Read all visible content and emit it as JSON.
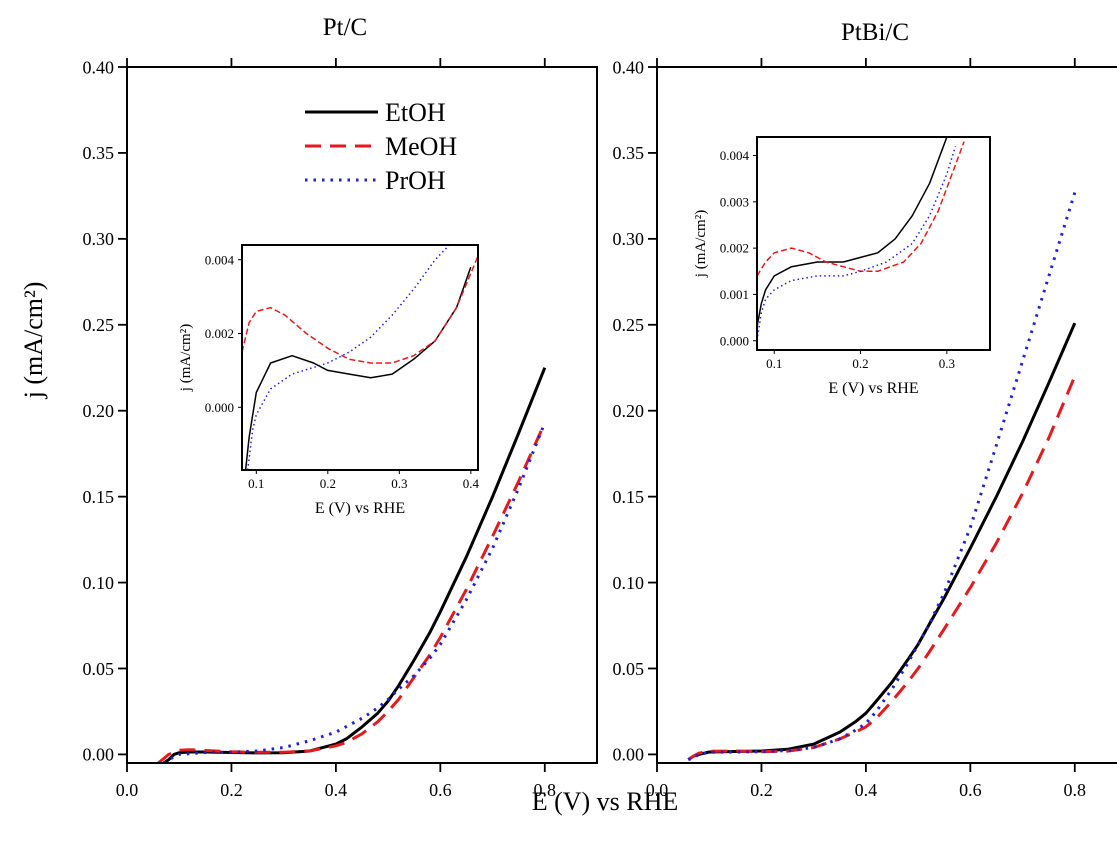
{
  "figure": {
    "xlabel": "E (V) vs RHE",
    "ylabel": "j (mA/cm²)"
  },
  "colors": {
    "EtOH": "#000000",
    "MeOH": "#e41a1c",
    "PrOH": "#1f1fd6"
  },
  "chart_data": [
    {
      "type": "line",
      "title": "Pt/C",
      "xlim": [
        0.0,
        0.9
      ],
      "ylim": [
        -0.005,
        0.4
      ],
      "xticks": [
        0.0,
        0.2,
        0.4,
        0.6,
        0.8
      ],
      "yticks": [
        0.0,
        0.05,
        0.1,
        0.15,
        0.2,
        0.25,
        0.3,
        0.35,
        0.4
      ],
      "legend": {
        "placement": "top-center",
        "entries": [
          "EtOH",
          "MeOH",
          "PrOH"
        ]
      },
      "series": [
        {
          "name": "EtOH",
          "style": "solid",
          "x": [
            0.07,
            0.08,
            0.09,
            0.1,
            0.12,
            0.15,
            0.2,
            0.25,
            0.3,
            0.35,
            0.4,
            0.42,
            0.45,
            0.48,
            0.5,
            0.52,
            0.55,
            0.58,
            0.6,
            0.65,
            0.7,
            0.75,
            0.8
          ],
          "y": [
            -0.005,
            -0.003,
            0.0,
            0.001,
            0.0014,
            0.0014,
            0.0011,
            0.0009,
            0.001,
            0.002,
            0.006,
            0.009,
            0.016,
            0.024,
            0.031,
            0.04,
            0.055,
            0.071,
            0.083,
            0.115,
            0.15,
            0.187,
            0.225
          ]
        },
        {
          "name": "MeOH",
          "style": "dashed",
          "x": [
            0.06,
            0.08,
            0.1,
            0.12,
            0.15,
            0.2,
            0.25,
            0.3,
            0.35,
            0.4,
            0.42,
            0.45,
            0.48,
            0.5,
            0.52,
            0.55,
            0.58,
            0.6,
            0.65,
            0.7,
            0.75,
            0.8
          ],
          "y": [
            -0.005,
            0.0,
            0.0024,
            0.0027,
            0.0023,
            0.0015,
            0.0012,
            0.0013,
            0.002,
            0.005,
            0.007,
            0.012,
            0.019,
            0.025,
            0.032,
            0.045,
            0.058,
            0.068,
            0.096,
            0.127,
            0.159,
            0.193
          ]
        },
        {
          "name": "PrOH",
          "style": "dotted",
          "x": [
            0.07,
            0.08,
            0.1,
            0.15,
            0.2,
            0.25,
            0.3,
            0.35,
            0.4,
            0.45,
            0.48,
            0.5,
            0.52,
            0.55,
            0.58,
            0.6,
            0.65,
            0.7,
            0.75,
            0.8
          ],
          "y": [
            -0.005,
            -0.003,
            0.0,
            0.0011,
            0.0013,
            0.002,
            0.004,
            0.008,
            0.013,
            0.021,
            0.027,
            0.032,
            0.038,
            0.046,
            0.056,
            0.064,
            0.09,
            0.12,
            0.155,
            0.193
          ]
        }
      ],
      "inset": {
        "xlabel": "E (V) vs RHE",
        "ylabel": "j (mA/cm²)",
        "xlim": [
          0.08,
          0.41
        ],
        "ylim": [
          -0.0017,
          0.0044
        ],
        "xticks": [
          0.1,
          0.2,
          0.3,
          0.4
        ],
        "yticks": [
          0.0,
          0.002,
          0.004
        ],
        "series": [
          {
            "name": "EtOH",
            "style": "solid",
            "x": [
              0.085,
              0.09,
              0.1,
              0.12,
              0.15,
              0.18,
              0.2,
              0.23,
              0.26,
              0.29,
              0.32,
              0.35,
              0.38,
              0.4
            ],
            "y": [
              -0.0017,
              -0.0008,
              0.0004,
              0.0012,
              0.0014,
              0.0012,
              0.001,
              0.0009,
              0.0008,
              0.0009,
              0.0013,
              0.0018,
              0.0027,
              0.0038
            ]
          },
          {
            "name": "MeOH",
            "style": "dashed",
            "x": [
              0.08,
              0.09,
              0.1,
              0.12,
              0.14,
              0.17,
              0.2,
              0.23,
              0.26,
              0.29,
              0.32,
              0.35,
              0.38,
              0.41
            ],
            "y": [
              0.0015,
              0.0023,
              0.0026,
              0.0027,
              0.0025,
              0.002,
              0.0016,
              0.0013,
              0.0012,
              0.0012,
              0.0014,
              0.0018,
              0.0027,
              0.0041
            ]
          },
          {
            "name": "PrOH",
            "style": "dotted",
            "x": [
              0.088,
              0.095,
              0.1,
              0.12,
              0.15,
              0.2,
              0.23,
              0.26,
              0.29,
              0.32,
              0.35,
              0.37
            ],
            "y": [
              -0.0017,
              -0.0006,
              -0.0002,
              0.0005,
              0.0009,
              0.0012,
              0.0015,
              0.0019,
              0.0025,
              0.0032,
              0.004,
              0.0044
            ]
          }
        ]
      }
    },
    {
      "type": "line",
      "title": "PtBi/C",
      "xlim": [
        0.0,
        0.9
      ],
      "ylim": [
        -0.005,
        0.4
      ],
      "xticks": [
        0.0,
        0.2,
        0.4,
        0.6,
        0.8
      ],
      "yticks": [
        0.0,
        0.05,
        0.1,
        0.15,
        0.2,
        0.25,
        0.3,
        0.35,
        0.4
      ],
      "series": [
        {
          "name": "EtOH",
          "style": "solid",
          "x": [
            0.06,
            0.07,
            0.08,
            0.1,
            0.15,
            0.2,
            0.25,
            0.3,
            0.35,
            0.38,
            0.4,
            0.42,
            0.45,
            0.48,
            0.5,
            0.52,
            0.55,
            0.6,
            0.65,
            0.7,
            0.75,
            0.8
          ],
          "y": [
            -0.003,
            -0.001,
            0.0,
            0.0014,
            0.0017,
            0.002,
            0.003,
            0.006,
            0.013,
            0.019,
            0.024,
            0.031,
            0.042,
            0.055,
            0.064,
            0.075,
            0.091,
            0.12,
            0.15,
            0.182,
            0.216,
            0.251
          ]
        },
        {
          "name": "MeOH",
          "style": "dashed",
          "x": [
            0.06,
            0.07,
            0.08,
            0.1,
            0.15,
            0.2,
            0.25,
            0.3,
            0.35,
            0.38,
            0.4,
            0.42,
            0.45,
            0.48,
            0.5,
            0.52,
            0.55,
            0.6,
            0.65,
            0.7,
            0.75,
            0.8
          ],
          "y": [
            -0.003,
            -0.001,
            0.0007,
            0.0018,
            0.002,
            0.0016,
            0.0019,
            0.004,
            0.009,
            0.013,
            0.016,
            0.021,
            0.031,
            0.042,
            0.05,
            0.059,
            0.073,
            0.097,
            0.123,
            0.152,
            0.184,
            0.22
          ]
        },
        {
          "name": "PrOH",
          "style": "dotted",
          "x": [
            0.06,
            0.07,
            0.08,
            0.1,
            0.15,
            0.2,
            0.25,
            0.3,
            0.35,
            0.38,
            0.4,
            0.42,
            0.45,
            0.48,
            0.5,
            0.52,
            0.55,
            0.6,
            0.65,
            0.7,
            0.75,
            0.8
          ],
          "y": [
            -0.003,
            -0.002,
            0.0,
            0.0012,
            0.0014,
            0.0016,
            0.0022,
            0.004,
            0.009,
            0.014,
            0.018,
            0.025,
            0.038,
            0.053,
            0.064,
            0.075,
            0.094,
            0.132,
            0.18,
            0.229,
            0.278,
            0.327
          ]
        }
      ],
      "inset": {
        "xlabel": "E (V) vs RHE",
        "ylabel": "j (mA/cm²)",
        "xlim": [
          0.08,
          0.35
        ],
        "ylim": [
          -0.0002,
          0.0044
        ],
        "xticks": [
          0.1,
          0.2,
          0.3
        ],
        "yticks": [
          0.0,
          0.001,
          0.002,
          0.003,
          0.004
        ],
        "series": [
          {
            "name": "EtOH",
            "style": "solid",
            "x": [
              0.08,
              0.085,
              0.09,
              0.1,
              0.12,
              0.15,
              0.18,
              0.2,
              0.22,
              0.24,
              0.26,
              0.28,
              0.3
            ],
            "y": [
              0.0003,
              0.0008,
              0.0011,
              0.0014,
              0.0016,
              0.0017,
              0.0017,
              0.0018,
              0.0019,
              0.0022,
              0.0027,
              0.0034,
              0.0044
            ]
          },
          {
            "name": "MeOH",
            "style": "dashed",
            "x": [
              0.08,
              0.09,
              0.1,
              0.12,
              0.14,
              0.16,
              0.18,
              0.2,
              0.22,
              0.25,
              0.27,
              0.29,
              0.31,
              0.32
            ],
            "y": [
              0.0014,
              0.0017,
              0.0019,
              0.002,
              0.0019,
              0.0017,
              0.0016,
              0.0015,
              0.0015,
              0.0017,
              0.0021,
              0.0028,
              0.0038,
              0.0043
            ]
          },
          {
            "name": "PrOH",
            "style": "dotted",
            "x": [
              0.08,
              0.085,
              0.09,
              0.1,
              0.12,
              0.15,
              0.18,
              0.2,
              0.23,
              0.26,
              0.28,
              0.3,
              0.31
            ],
            "y": [
              0.0,
              0.0006,
              0.0009,
              0.0011,
              0.0013,
              0.0014,
              0.0014,
              0.0015,
              0.0017,
              0.0021,
              0.0027,
              0.0036,
              0.0042
            ]
          }
        ]
      }
    }
  ]
}
